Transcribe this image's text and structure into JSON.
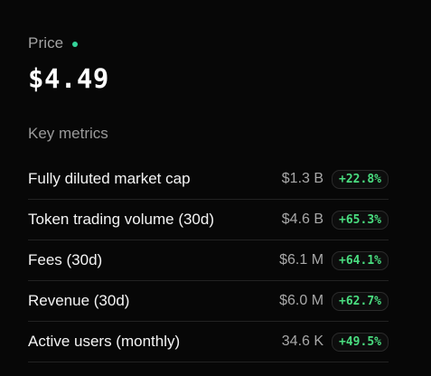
{
  "price": {
    "label": "Price",
    "value": "$4.49",
    "live_color": "#34d399"
  },
  "key_metrics": {
    "title": "Key metrics",
    "positive_color": "#4ade80",
    "rows": [
      {
        "label": "Fully diluted market cap",
        "value": "$1.3 B",
        "change": "+22.8%"
      },
      {
        "label": "Token trading volume (30d)",
        "value": "$4.6 B",
        "change": "+65.3%"
      },
      {
        "label": "Fees (30d)",
        "value": "$6.1 M",
        "change": "+64.1%"
      },
      {
        "label": "Revenue (30d)",
        "value": "$6.0 M",
        "change": "+62.7%"
      },
      {
        "label": "Active users (monthly)",
        "value": "34.6 K",
        "change": "+49.5%"
      }
    ]
  }
}
